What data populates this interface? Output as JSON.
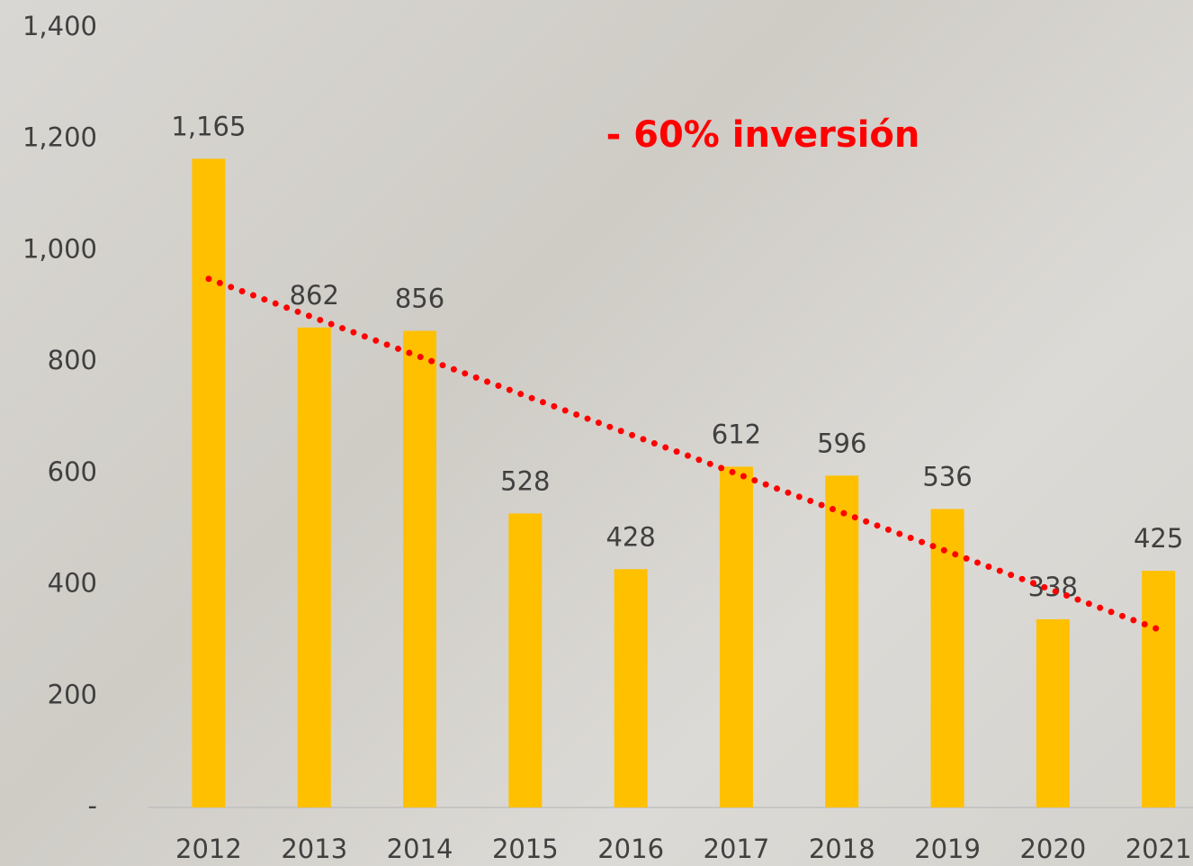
{
  "chart_data": {
    "type": "bar",
    "annotation": "- 60% inversión",
    "categories": [
      "2012",
      "2013",
      "2014",
      "2015",
      "2016",
      "2017",
      "2018",
      "2019",
      "2020",
      "2021"
    ],
    "values": [
      1165,
      862,
      856,
      528,
      428,
      612,
      596,
      536,
      338,
      425
    ],
    "value_labels": [
      "1,165",
      "862",
      "856",
      "528",
      "428",
      "612",
      "596",
      "536",
      "338",
      "425"
    ],
    "color": "#ffc000",
    "ylim": [
      0,
      1400
    ],
    "yticks": [
      {
        "value": 0,
        "label": "-"
      },
      200,
      400,
      600,
      800,
      {
        "value": 1000,
        "label": "1,000"
      },
      {
        "value": 1200,
        "label": "1,200"
      },
      {
        "value": 1400,
        "label": "1,400"
      }
    ],
    "trendline": "linear",
    "trendline_color": "#ff0000",
    "grid": false
  }
}
